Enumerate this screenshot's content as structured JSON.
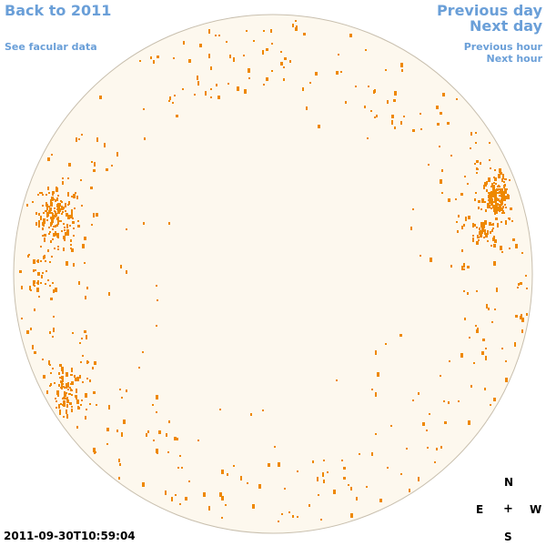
{
  "nav": {
    "back_label": "Back to 2011",
    "facular_label": "See facular data",
    "prev_day_label": "Previous day",
    "next_day_label": "Next day",
    "prev_hour_label": "Previous hour",
    "next_hour_label": "Next hour"
  },
  "compass": {
    "north": "N",
    "east": "E",
    "center": "+",
    "west": "W",
    "south": "S"
  },
  "timestamp": "2011-09-30T10:59:04",
  "colors": {
    "link": "#6a9fd8",
    "disk_fill": "#fdf8ee",
    "disk_border": "#c8bfae",
    "facula": "#ee8800"
  }
}
